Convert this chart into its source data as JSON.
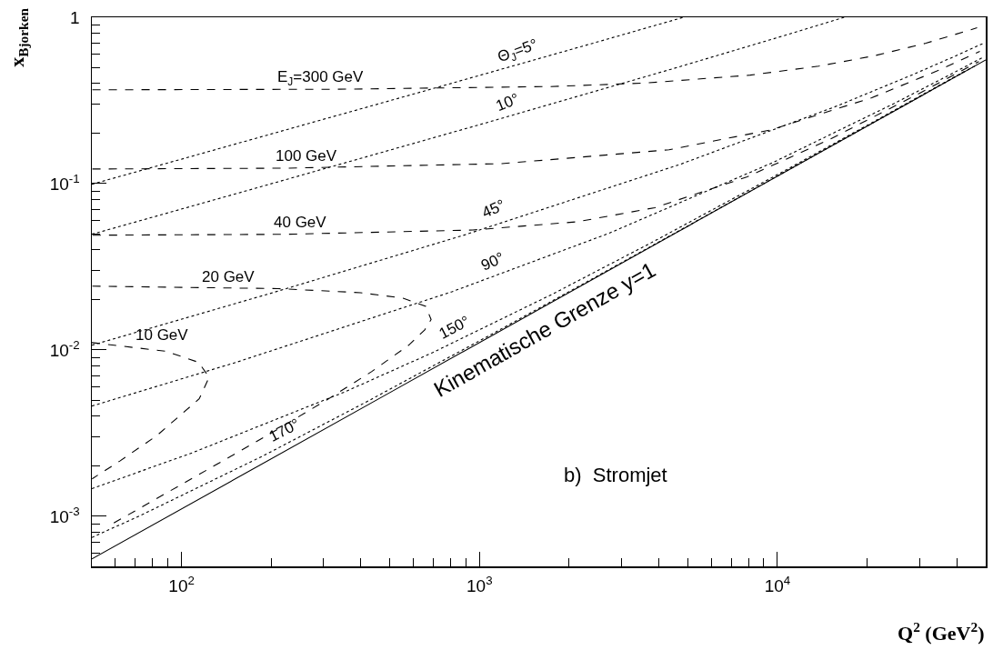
{
  "chart_data": {
    "type": "line",
    "xlabel": "Q$^{2}$ (GeV$^{2}$)",
    "ylabel": "x$_{Bjorken}$",
    "log": "xy",
    "xlim": [
      50,
      50000
    ],
    "ylim": [
      0.0005,
      1
    ],
    "xticks": [
      {
        "value": 50,
        "label": null
      },
      {
        "value": 60,
        "label": null
      },
      {
        "value": 70,
        "label": null
      },
      {
        "value": 80,
        "label": null
      },
      {
        "value": 90,
        "label": null
      },
      {
        "value": 100,
        "label": "10$^{2}$"
      },
      {
        "value": 200,
        "label": null
      },
      {
        "value": 300,
        "label": null
      },
      {
        "value": 400,
        "label": null
      },
      {
        "value": 500,
        "label": null
      },
      {
        "value": 600,
        "label": null
      },
      {
        "value": 700,
        "label": null
      },
      {
        "value": 800,
        "label": null
      },
      {
        "value": 900,
        "label": null
      },
      {
        "value": 1000,
        "label": "10$^{3}$"
      },
      {
        "value": 2000,
        "label": null
      },
      {
        "value": 3000,
        "label": null
      },
      {
        "value": 4000,
        "label": null
      },
      {
        "value": 5000,
        "label": null
      },
      {
        "value": 6000,
        "label": null
      },
      {
        "value": 7000,
        "label": null
      },
      {
        "value": 8000,
        "label": null
      },
      {
        "value": 9000,
        "label": null
      },
      {
        "value": 10000,
        "label": "10$^{4}$"
      },
      {
        "value": 20000,
        "label": null
      },
      {
        "value": 30000,
        "label": null
      },
      {
        "value": 40000,
        "label": null
      }
    ],
    "yticks": [
      {
        "value": 0.0006,
        "label": null
      },
      {
        "value": 0.0007,
        "label": null
      },
      {
        "value": 0.0008,
        "label": null
      },
      {
        "value": 0.0009,
        "label": null
      },
      {
        "value": 0.001,
        "label": "10$^{-3}$"
      },
      {
        "value": 0.002,
        "label": null
      },
      {
        "value": 0.003,
        "label": null
      },
      {
        "value": 0.004,
        "label": null
      },
      {
        "value": 0.005,
        "label": null
      },
      {
        "value": 0.006,
        "label": null
      },
      {
        "value": 0.007,
        "label": null
      },
      {
        "value": 0.008,
        "label": null
      },
      {
        "value": 0.009,
        "label": null
      },
      {
        "value": 0.01,
        "label": "10$^{-2}$"
      },
      {
        "value": 0.02,
        "label": null
      },
      {
        "value": 0.03,
        "label": null
      },
      {
        "value": 0.04,
        "label": null
      },
      {
        "value": 0.05,
        "label": null
      },
      {
        "value": 0.06,
        "label": null
      },
      {
        "value": 0.07,
        "label": null
      },
      {
        "value": 0.08,
        "label": null
      },
      {
        "value": 0.09,
        "label": null
      },
      {
        "value": 0.1,
        "label": "10$^{-1}$"
      },
      {
        "value": 0.2,
        "label": null
      },
      {
        "value": 0.3,
        "label": null
      },
      {
        "value": 0.4,
        "label": null
      },
      {
        "value": 0.5,
        "label": null
      },
      {
        "value": 0.6,
        "label": null
      },
      {
        "value": 0.7,
        "label": null
      },
      {
        "value": 0.8,
        "label": null
      },
      {
        "value": 0.9,
        "label": null
      },
      {
        "value": 1,
        "label": "1"
      }
    ],
    "series": [
      {
        "color": "#000000",
        "line_style": "solid",
        "x": [
          50,
          500,
          5000,
          50000
        ],
        "values": [
          0.000554,
          0.00554,
          0.0554,
          0.554
        ]
      },
      {
        "color": "#000000",
        "line_style": "dashed",
        "x": [
          50.2,
          333,
          1729,
          3633,
          8099,
          13754,
          21193,
          31487,
          46777
        ],
        "values": [
          0.3664,
          0.3692,
          0.3833,
          0.4028,
          0.4489,
          0.5083,
          0.5874,
          0.6982,
          0.8643
        ]
      },
      {
        "color": "#000000",
        "line_style": "dashed",
        "x": [
          50.2,
          223,
          1189,
          4325,
          9487,
          20727,
          34320,
          47762
        ],
        "values": [
          0.1224,
          0.1238,
          0.1318,
          0.1598,
          0.2104,
          0.3283,
          0.4756,
          0.623
        ]
      },
      {
        "color": "#000000",
        "line_style": "dashed",
        "x": [
          50.3,
          224,
          949,
          2127,
          3878,
          7920,
          15098,
          28998,
          47392
        ],
        "values": [
          0.04896,
          0.04958,
          0.05259,
          0.05894,
          0.07165,
          0.1098,
          0.186,
          0.3384,
          0.5417
        ]
      },
      {
        "color": "#000000",
        "line_style": "dashed",
        "x": [
          50.2,
          211,
          399,
          554,
          660,
          688,
          655,
          578,
          434,
          304,
          193,
          128,
          56.6
        ],
        "values": [
          0.02418,
          0.02337,
          0.0221,
          0.02047,
          0.01829,
          0.01524,
          0.01321,
          0.01067,
          0.0074,
          0.00495,
          0.00305,
          0.002,
          0.00087
        ]
      },
      {
        "color": "#000000",
        "line_style": "dashed",
        "x": [
          50,
          88.6,
          114,
          123.8,
          114.6,
          82.5,
          62.1,
          50.1
        ],
        "values": [
          0.01107,
          0.00982,
          0.00843,
          0.00686,
          0.00508,
          0.00305,
          0.00215,
          0.00168
        ]
      },
      {
        "color": "#000000",
        "line_style": "dotted",
        "x": [
          50,
          160,
          648,
          1472,
          2644,
          4840
        ],
        "values": [
          0.0991,
          0.1777,
          0.359,
          0.544,
          0.733,
          1
        ]
      },
      {
        "color": "#000000",
        "line_style": "dotted",
        "x": [
          50,
          161,
          1040,
          4392,
          10463,
          16759
        ],
        "values": [
          0.0496,
          0.0894,
          0.2306,
          0.4869,
          0.7733,
          1
        ]
      },
      {
        "color": "#000000",
        "line_style": "dotted",
        "x": [
          50,
          196,
          882,
          4702,
          15868,
          28798,
          39671,
          48758
        ],
        "values": [
          0.01068,
          0.02172,
          0.04887,
          0.1303,
          0.2932,
          0.4561,
          0.5864,
          0.693
        ]
      },
      {
        "color": "#000000",
        "line_style": "dotted",
        "x": [
          50,
          151,
          807,
          2723,
          9680,
          24503,
          37376,
          49118
        ],
        "values": [
          0.0046,
          0.00838,
          0.02236,
          0.0503,
          0.1342,
          0.3018,
          0.4456,
          0.5762
        ]
      },
      {
        "color": "#000000",
        "line_style": "dotted",
        "x": [
          50,
          108.6,
          355,
          695,
          1759,
          3920,
          10430,
          21287,
          43005
        ],
        "values": [
          0.001465,
          0.002408,
          0.005618,
          0.00963,
          0.02167,
          0.04575,
          0.118,
          0.2384,
          0.4792
        ]
      },
      {
        "color": "#000000",
        "line_style": "dotted",
        "x": [
          50,
          74.1,
          188,
          418,
          1112,
          2269,
          4585,
          11531,
          23108,
          46263
        ],
        "values": [
          0.000745,
          0.001027,
          0.00231,
          0.00488,
          0.01258,
          0.02541,
          0.05108,
          0.1281,
          0.2564,
          0.5131
        ]
      }
    ],
    "annotations": [
      "E$_{J}$=300 GeV",
      "100 GeV",
      "40 GeV",
      "20 GeV",
      "10 GeV",
      "Θ$_{J}$=5°",
      "10°",
      "45°",
      "90°",
      "150°",
      "170°",
      "Kinematische Grenze y=1",
      "b)  Stromjet"
    ]
  }
}
